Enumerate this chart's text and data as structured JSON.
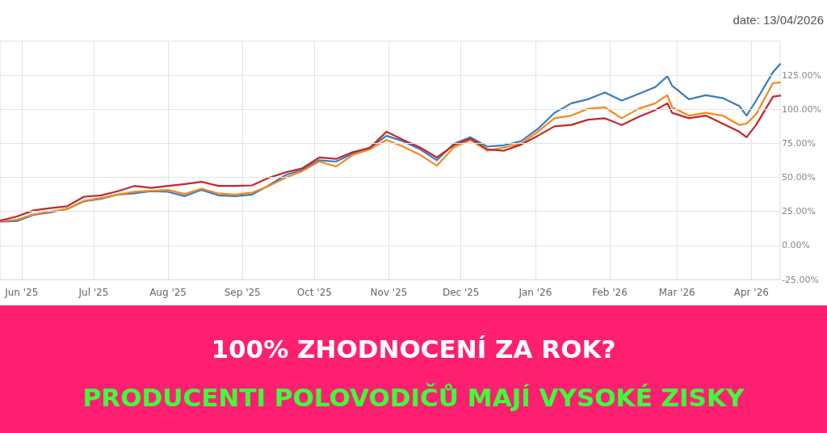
{
  "chart_data": {
    "type": "line",
    "title": "100% ZHODNOCENÍ ZA ROK?",
    "subtitle": "PRODUCENTI POLOVODIČŮ MAJÍ VYSOKÉ ZISKY",
    "annotations": [
      "date: 13/04/2026"
    ],
    "x": [
      "2025-05-23",
      "2025-05-30",
      "2025-06-06",
      "2025-06-13",
      "2025-06-20",
      "2025-06-27",
      "2025-07-04",
      "2025-07-11",
      "2025-07-18",
      "2025-07-25",
      "2025-08-01",
      "2025-08-08",
      "2025-08-15",
      "2025-08-22",
      "2025-08-29",
      "2025-09-05",
      "2025-09-12",
      "2025-09-19",
      "2025-09-26",
      "2025-10-03",
      "2025-10-10",
      "2025-10-17",
      "2025-10-24",
      "2025-10-31",
      "2025-11-07",
      "2025-11-14",
      "2025-11-21",
      "2025-11-28",
      "2025-12-05",
      "2025-12-12",
      "2025-12-19",
      "2025-12-26",
      "2026-01-02",
      "2026-01-09",
      "2026-01-16",
      "2026-01-23",
      "2026-01-30",
      "2026-02-06",
      "2026-02-13",
      "2026-02-20",
      "2026-02-25",
      "2026-02-27",
      "2026-03-06",
      "2026-03-13",
      "2026-03-20",
      "2026-03-27",
      "2026-03-30",
      "2026-04-03",
      "2026-04-10",
      "2026-04-13"
    ],
    "series": [
      {
        "color": "#3a7cc0",
        "values": [
          17.5,
          17.9,
          22.5,
          24.3,
          26.8,
          32.4,
          34.2,
          37.4,
          38.2,
          39.8,
          39.4,
          36.2,
          40.8,
          36.8,
          36.2,
          37.4,
          44.1,
          51.7,
          55.7,
          62.6,
          61.6,
          67.6,
          71.6,
          80.5,
          76.5,
          70.6,
          62.6,
          74.6,
          79.5,
          72.6,
          73.6,
          76.5,
          85.5,
          97.4,
          104.4,
          107.4,
          112.3,
          106.4,
          111.3,
          116.3,
          124.3,
          117.3,
          107.4,
          110.3,
          108.3,
          102.4,
          95.4,
          106.4,
          127.2,
          133.2
        ]
      },
      {
        "color": "#f28a1e",
        "values": [
          17.9,
          18.9,
          22.9,
          24.9,
          26.8,
          32.8,
          34.8,
          37.4,
          39.4,
          40.2,
          40.8,
          37.8,
          41.7,
          38.2,
          37.4,
          38.8,
          43.7,
          49.7,
          54.7,
          61.6,
          58,
          66.6,
          70.6,
          77.5,
          72.6,
          66.6,
          58.6,
          72,
          77.5,
          69.6,
          72,
          74.6,
          83.5,
          93.4,
          95.4,
          100.4,
          101.4,
          93.4,
          100.4,
          104.4,
          110.3,
          101.4,
          95.4,
          97.4,
          95.4,
          88.5,
          89.5,
          96.4,
          119.3,
          119.7
        ]
      },
      {
        "color": "#c4262e",
        "values": [
          18.3,
          21.3,
          25.8,
          27.4,
          28.8,
          35.8,
          36.8,
          39.8,
          43.7,
          42.3,
          43.7,
          45.1,
          46.7,
          43.7,
          43.7,
          44.1,
          49.7,
          53.7,
          56.7,
          64.6,
          63.6,
          68.6,
          71.6,
          83.5,
          77.5,
          72,
          64.6,
          73.6,
          78.5,
          70.6,
          69.6,
          74,
          80.5,
          87.5,
          88.5,
          92.4,
          93.4,
          88.5,
          94.4,
          99.4,
          104.4,
          97.4,
          93.4,
          95.4,
          89.5,
          83.5,
          79.5,
          88.5,
          109.3,
          110
        ]
      }
    ],
    "xlim": [
      "2025-05-23",
      "2026-04-13"
    ],
    "xticks": [
      {
        "value": "2025-06-01",
        "label": "Jun '25"
      },
      {
        "value": "2025-07-01",
        "label": "Jul '25"
      },
      {
        "value": "2025-08-01",
        "label": "Aug '25"
      },
      {
        "value": "2025-09-01",
        "label": "Sep '25"
      },
      {
        "value": "2025-10-01",
        "label": "Oct '25"
      },
      {
        "value": "2025-11-01",
        "label": "Nov '25"
      },
      {
        "value": "2025-12-01",
        "label": "Dec '25"
      },
      {
        "value": "2026-01-01",
        "label": "Jan '26"
      },
      {
        "value": "2026-02-01",
        "label": "Feb '26"
      },
      {
        "value": "2026-03-01",
        "label": "Mar '26"
      },
      {
        "value": "2026-04-01",
        "label": "Apr '26"
      }
    ],
    "ylim": [
      -25,
      150
    ],
    "yticks": [
      {
        "value": -25,
        "label": "-25.00%"
      },
      {
        "value": 0,
        "label": "0.00%"
      },
      {
        "value": 25,
        "label": "25.00%"
      },
      {
        "value": 50,
        "label": "50.00%"
      },
      {
        "value": 75,
        "label": "75.00%"
      },
      {
        "value": 100,
        "label": "100.00%"
      },
      {
        "value": 125,
        "label": "125.00%"
      }
    ],
    "grid": true,
    "marker": "none",
    "line_style": "solid"
  }
}
